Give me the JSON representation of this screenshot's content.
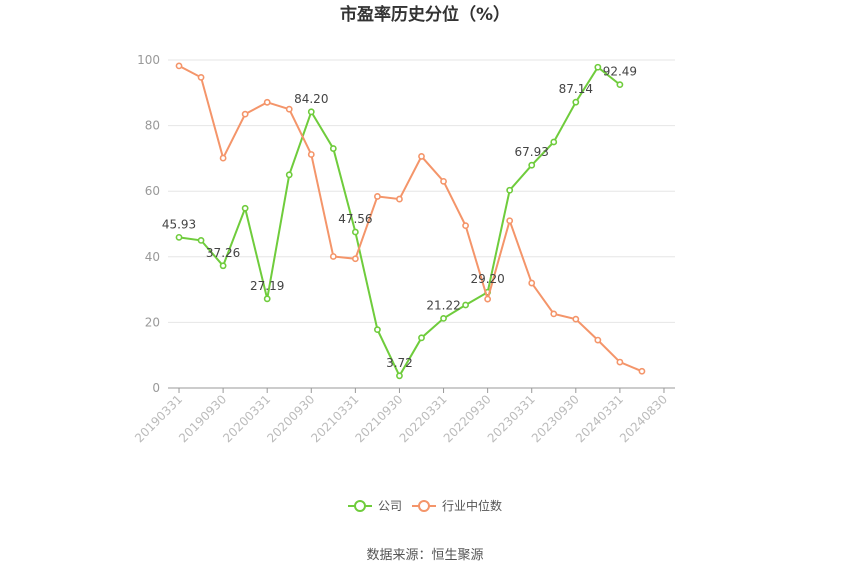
{
  "chart_data": {
    "type": "line",
    "title": "市盈率历史分位（%）",
    "ylim": [
      0,
      100
    ],
    "y_ticks": [
      0,
      20,
      40,
      60,
      80,
      100
    ],
    "grid": true,
    "legend_position": "bottom",
    "x_ticks": [
      "20190331",
      "20190930",
      "20200331",
      "20200930",
      "20210331",
      "20210930",
      "20220331",
      "20220930",
      "20230331",
      "20230930",
      "20240331",
      "20240830"
    ],
    "x": [
      "20190331",
      "20190630",
      "20190930",
      "20191231",
      "20200331",
      "20200630",
      "20200930",
      "20201231",
      "20210331",
      "20210630",
      "20210930",
      "20211231",
      "20220331",
      "20220630",
      "20220930",
      "20221231",
      "20230331",
      "20230630",
      "20230930",
      "20231231",
      "20240331",
      "20240630",
      "20240830"
    ],
    "series": [
      {
        "name": "公司",
        "color": "#6fcc3c",
        "values": [
          45.93,
          45.0,
          37.26,
          54.8,
          27.19,
          65.0,
          84.2,
          73.0,
          47.56,
          17.8,
          3.72,
          15.3,
          21.22,
          25.3,
          29.2,
          60.3,
          67.93,
          75.0,
          87.14,
          97.8,
          92.49,
          null,
          null
        ]
      },
      {
        "name": "行业中位数",
        "color": "#f4956a",
        "values": [
          98.2,
          94.7,
          70.1,
          83.5,
          87.1,
          85.0,
          71.2,
          40.1,
          39.4,
          58.4,
          57.6,
          70.6,
          63.0,
          49.5,
          27.1,
          51.0,
          32.0,
          22.6,
          21.0,
          14.6,
          7.9,
          5.1,
          null
        ]
      }
    ],
    "data_labels": [
      {
        "series": 0,
        "index": 0,
        "text": "45.93"
      },
      {
        "series": 0,
        "index": 2,
        "text": "37.26"
      },
      {
        "series": 0,
        "index": 4,
        "text": "27.19"
      },
      {
        "series": 0,
        "index": 6,
        "text": "84.20"
      },
      {
        "series": 0,
        "index": 8,
        "text": "47.56"
      },
      {
        "series": 0,
        "index": 10,
        "text": "3.72"
      },
      {
        "series": 0,
        "index": 12,
        "text": "21.22"
      },
      {
        "series": 0,
        "index": 14,
        "text": "29.20"
      },
      {
        "series": 0,
        "index": 16,
        "text": "67.93"
      },
      {
        "series": 0,
        "index": 18,
        "text": "87.14"
      },
      {
        "series": 0,
        "index": 20,
        "text": "92.49"
      }
    ]
  },
  "legend": {
    "company": "公司",
    "industry": "行业中位数"
  },
  "source": "数据来源：恒生聚源"
}
